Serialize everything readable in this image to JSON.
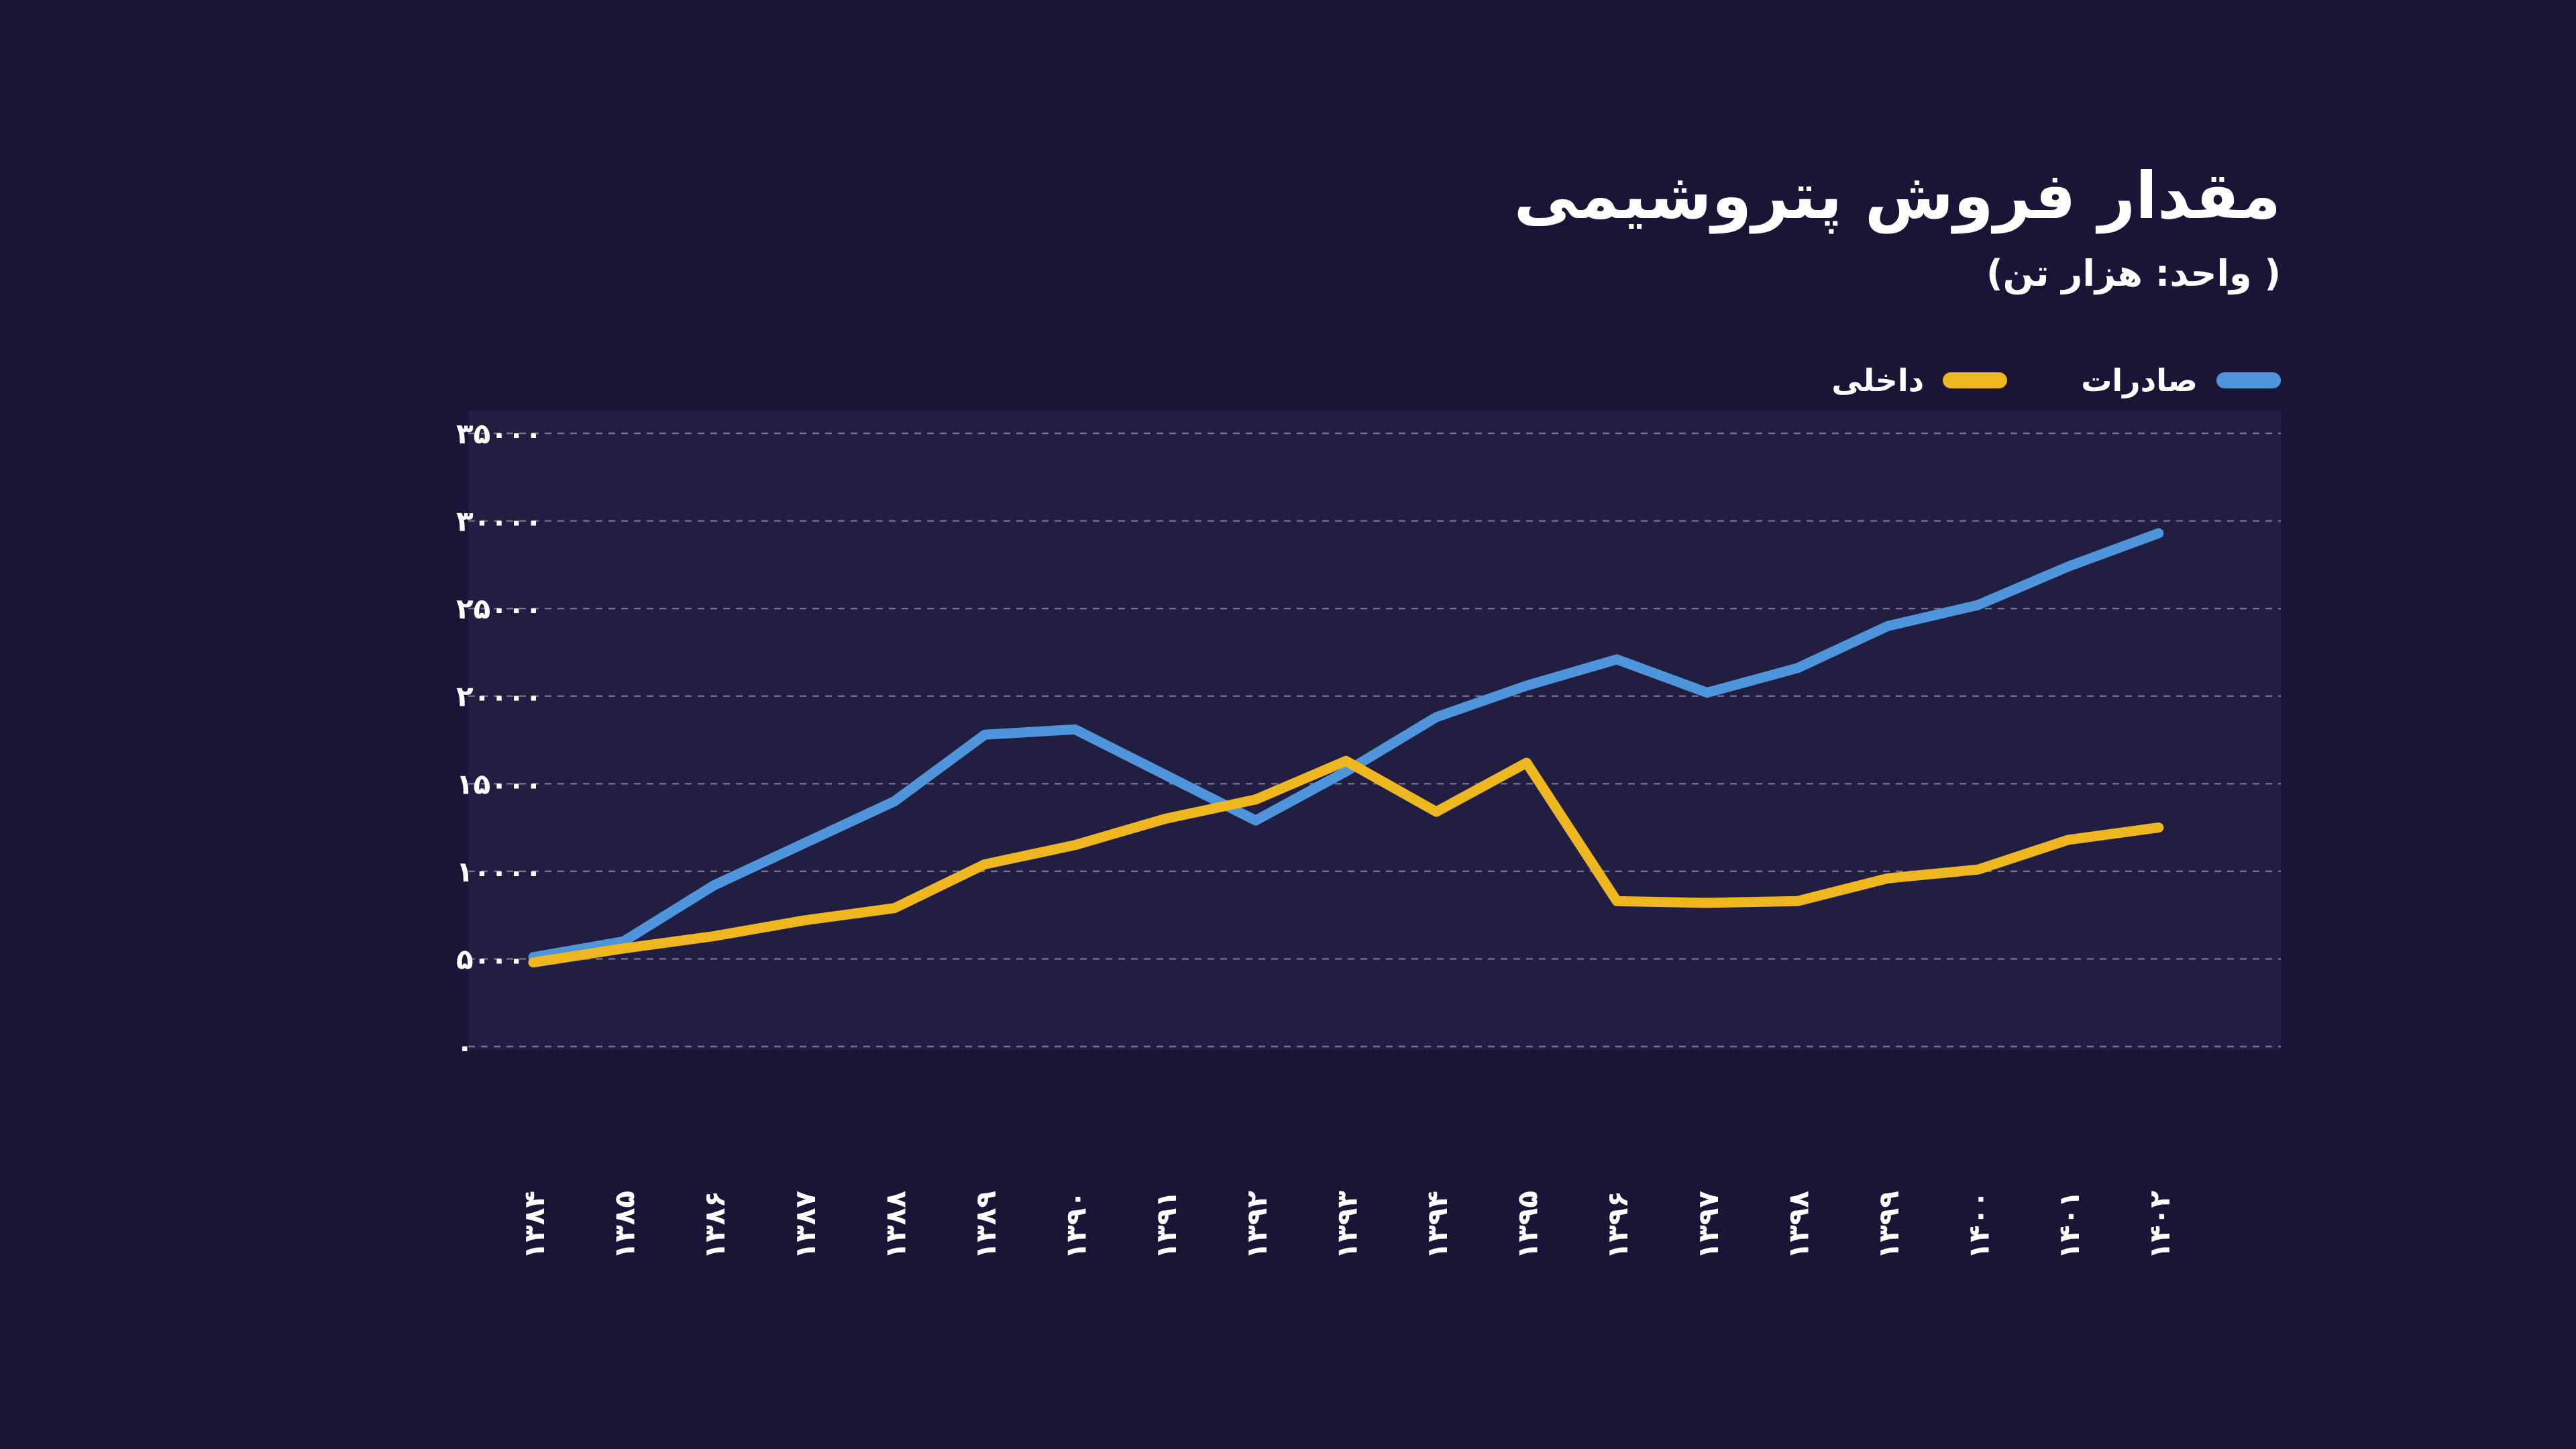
{
  "header": {
    "title": "مقدار فروش پتروشیمی",
    "subtitle": "( واحد: هزار تن)"
  },
  "legend": {
    "items": [
      {
        "label": "صادرات",
        "color": "#4E95DB"
      },
      {
        "label": "داخلی",
        "color": "#EFB71F"
      }
    ]
  },
  "colors": {
    "page_bg": "#1A1537",
    "plot_bg": "#221E42",
    "gridline": "#D9D9E8",
    "text": "#FFFFFF",
    "exports_line": "#4E95DB",
    "domestic_line": "#EFB71F"
  },
  "chart_data": {
    "type": "line",
    "title": "مقدار فروش پتروشیمی",
    "subtitle_unit": "( واحد: هزار تن)",
    "categories": [
      "۱۳۸۴",
      "۱۳۸۵",
      "۱۳۸۶",
      "۱۳۸۷",
      "۱۳۸۸",
      "۱۳۸۹",
      "۱۳۹۰",
      "۱۳۹۱",
      "۱۳۹۲",
      "۱۳۹۳",
      "۱۳۹۴",
      "۱۳۹۵",
      "۱۳۹۶",
      "۱۳۹۷",
      "۱۳۹۸",
      "۱۳۹۹",
      "۱۴۰۰",
      "۱۴۰۱",
      "۱۴۰۲"
    ],
    "series": [
      {
        "name": "صادرات",
        "color": "#4E95DB",
        "values": [
          5100,
          6000,
          9200,
          11600,
          14000,
          17800,
          18100,
          15500,
          12900,
          15700,
          18800,
          20600,
          22100,
          20200,
          21600,
          24000,
          25200,
          27400,
          29300
        ]
      },
      {
        "name": "داخلی",
        "color": "#EFB71F",
        "values": [
          4800,
          5600,
          6300,
          7200,
          7900,
          10400,
          11500,
          13000,
          14100,
          16300,
          13400,
          16200,
          8300,
          8200,
          8300,
          9600,
          10100,
          11800,
          12500
        ]
      }
    ],
    "ylim": [
      0,
      35000
    ],
    "ytick_step": 5000,
    "ytick_labels": [
      "۰",
      "۵۰۰۰",
      "۱۰۰۰۰",
      "۱۵۰۰۰",
      "۲۰۰۰۰",
      "۲۵۰۰۰",
      "۳۰۰۰۰",
      "۳۵۰۰۰"
    ],
    "grid": "horizontal-dashed",
    "legend_position": "top-right",
    "x_label_rotation": -90
  }
}
